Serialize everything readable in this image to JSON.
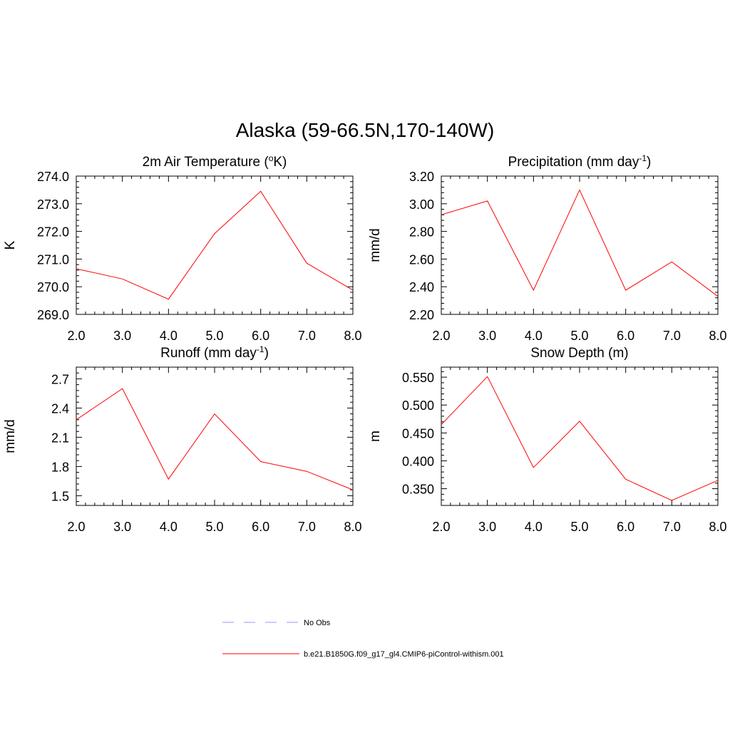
{
  "figure": {
    "title": "Alaska (59-66.5N,170-140W)"
  },
  "legend": {
    "items": [
      {
        "label": "No Obs",
        "color": "#9999ff",
        "dash": true
      },
      {
        "label": "b.e21.B1850G.f09_g17_gl4.CMIP6-piControl-withism.001",
        "color": "#ff0000",
        "dash": false
      }
    ]
  },
  "chart_data": [
    {
      "type": "line",
      "title": "2m Air Temperature (oK)",
      "title_parts": {
        "prefix": "2m Air Temperature (",
        "sup": "o",
        "suffix": "K)"
      },
      "ylabel": "K",
      "xlim": [
        2,
        8
      ],
      "ylim": [
        269,
        274
      ],
      "xticks": [
        2,
        3,
        4,
        5,
        6,
        7,
        8
      ],
      "xtick_labels": [
        "2.0",
        "3.0",
        "4.0",
        "5.0",
        "6.0",
        "7.0",
        "8.0"
      ],
      "yticks": [
        269,
        270,
        271,
        272,
        273,
        274
      ],
      "ytick_labels": [
        "269.0",
        "270.0",
        "271.0",
        "272.0",
        "273.0",
        "274.0"
      ],
      "grid": false,
      "series": [
        {
          "color": "#ff0000",
          "x": [
            2,
            3,
            4,
            5,
            6,
            7,
            8
          ],
          "y": [
            270.65,
            270.28,
            269.55,
            271.92,
            273.45,
            270.85,
            269.88
          ]
        }
      ]
    },
    {
      "type": "line",
      "title": "Precipitation (mm day-1)",
      "title_parts": {
        "prefix": "Precipitation (mm day",
        "sup": "-1",
        "suffix": ")"
      },
      "ylabel": "mm/d",
      "xlim": [
        2,
        8
      ],
      "ylim": [
        2.2,
        3.2
      ],
      "xticks": [
        2,
        3,
        4,
        5,
        6,
        7,
        8
      ],
      "xtick_labels": [
        "2.0",
        "3.0",
        "4.0",
        "5.0",
        "6.0",
        "7.0",
        "8.0"
      ],
      "yticks": [
        2.2,
        2.4,
        2.6,
        2.8,
        3.0,
        3.2
      ],
      "ytick_labels": [
        "2.20",
        "2.40",
        "2.60",
        "2.80",
        "3.00",
        "3.20"
      ],
      "grid": false,
      "series": [
        {
          "color": "#ff0000",
          "x": [
            2,
            3,
            4,
            5,
            6,
            7,
            8
          ],
          "y": [
            2.92,
            3.02,
            2.375,
            3.1,
            2.375,
            2.58,
            2.33
          ]
        }
      ]
    },
    {
      "type": "line",
      "title": "Runoff (mm day-1)",
      "title_parts": {
        "prefix": "Runoff (mm day",
        "sup": "-1",
        "suffix": ")"
      },
      "ylabel": "mm/d",
      "xlim": [
        2,
        8
      ],
      "ylim": [
        1.4,
        2.82
      ],
      "xticks": [
        2,
        3,
        4,
        5,
        6,
        7,
        8
      ],
      "xtick_labels": [
        "2.0",
        "3.0",
        "4.0",
        "5.0",
        "6.0",
        "7.0",
        "8.0"
      ],
      "yticks": [
        1.5,
        1.8,
        2.1,
        2.4,
        2.7
      ],
      "ytick_labels": [
        "1.5",
        "1.8",
        "2.1",
        "2.4",
        "2.7"
      ],
      "grid": false,
      "series": [
        {
          "color": "#ff0000",
          "x": [
            2,
            3,
            4,
            5,
            6,
            7,
            8
          ],
          "y": [
            2.28,
            2.6,
            1.67,
            2.34,
            1.85,
            1.75,
            1.56
          ]
        }
      ]
    },
    {
      "type": "line",
      "title": "Snow Depth (m)",
      "title_parts": {
        "prefix": "Snow Depth (m)",
        "sup": "",
        "suffix": ""
      },
      "ylabel": "m",
      "xlim": [
        2,
        8
      ],
      "ylim": [
        0.32,
        0.568
      ],
      "xticks": [
        2,
        3,
        4,
        5,
        6,
        7,
        8
      ],
      "xtick_labels": [
        "2.0",
        "3.0",
        "4.0",
        "5.0",
        "6.0",
        "7.0",
        "8.0"
      ],
      "yticks": [
        0.35,
        0.4,
        0.45,
        0.5,
        0.55
      ],
      "ytick_labels": [
        "0.350",
        "0.400",
        "0.450",
        "0.500",
        "0.550"
      ],
      "grid": false,
      "series": [
        {
          "color": "#ff0000",
          "x": [
            2,
            3,
            4,
            5,
            6,
            7,
            8
          ],
          "y": [
            0.465,
            0.551,
            0.388,
            0.471,
            0.367,
            0.329,
            0.365
          ]
        }
      ]
    }
  ]
}
